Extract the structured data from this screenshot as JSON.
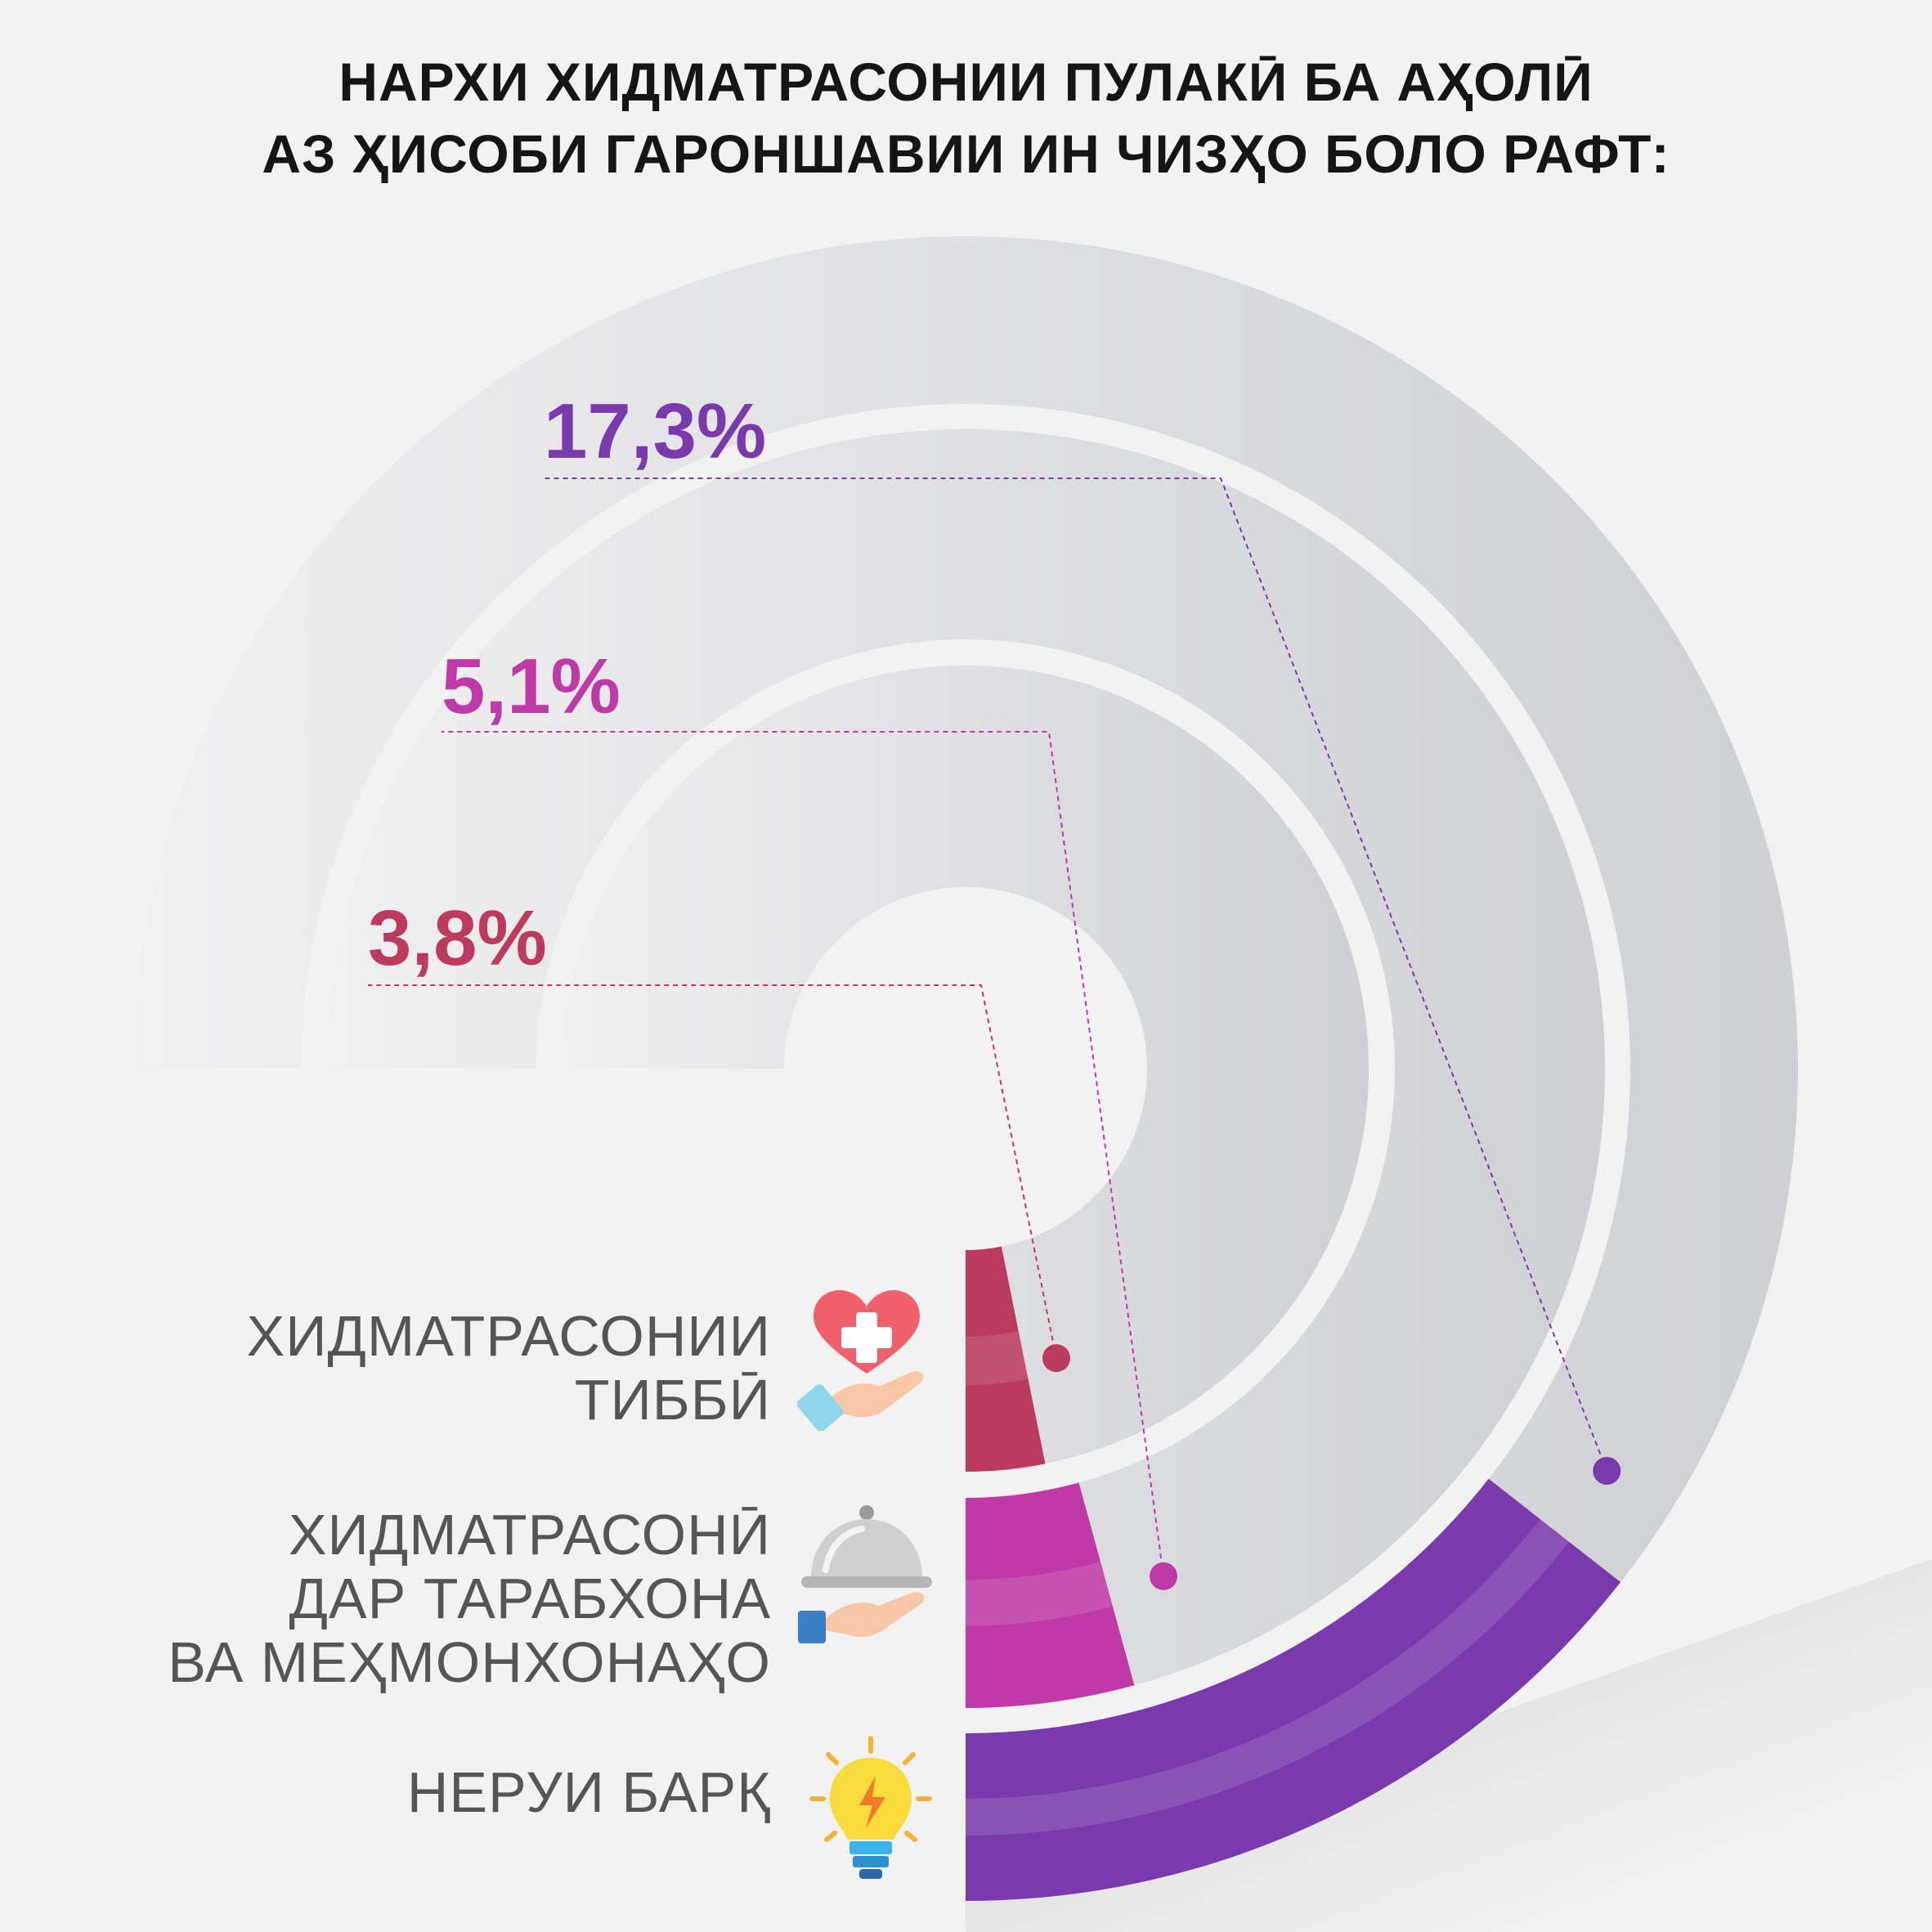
{
  "title": {
    "line1": "НАРХИ ХИДМАТРАСОНИИ ПУЛАКӢ БА АҲОЛӢ",
    "line2": "АЗ ҲИСОБИ ГАРОНШАВИИ ИН ЧИЗҲО БОЛО РАФТ:"
  },
  "chart_data": {
    "type": "radial-bar",
    "unit": "%",
    "series": [
      {
        "category": "ХИДМАТРАСОНИИ ТИББӢ",
        "label_lines": [
          "ХИДМАТРАСОНИИ",
          "ТИББӢ"
        ],
        "value": 3.8,
        "value_label": "3,8%",
        "color": "#bb3a5e",
        "icon": "medical-care-icon"
      },
      {
        "category": "ХИДМАТРАСОНӢ ДАР ТАРАБХОНА ВА МЕҲМОНХОНАҲО",
        "label_lines": [
          "ХИДМАТРАСОНӢ",
          "ДАР ТАРАБХОНА",
          "ВА МЕҲМОНХОНАҲО"
        ],
        "value": 5.1,
        "value_label": "5,1%",
        "color": "#bf3aa6",
        "icon": "restaurant-service-icon"
      },
      {
        "category": "НЕРУИ БАРҚ",
        "label_lines": [
          "НЕРУИ БАРҚ"
        ],
        "value": 17.3,
        "value_label": "17,3%",
        "color": "#7a3aad",
        "icon": "light-bulb-icon"
      }
    ]
  }
}
